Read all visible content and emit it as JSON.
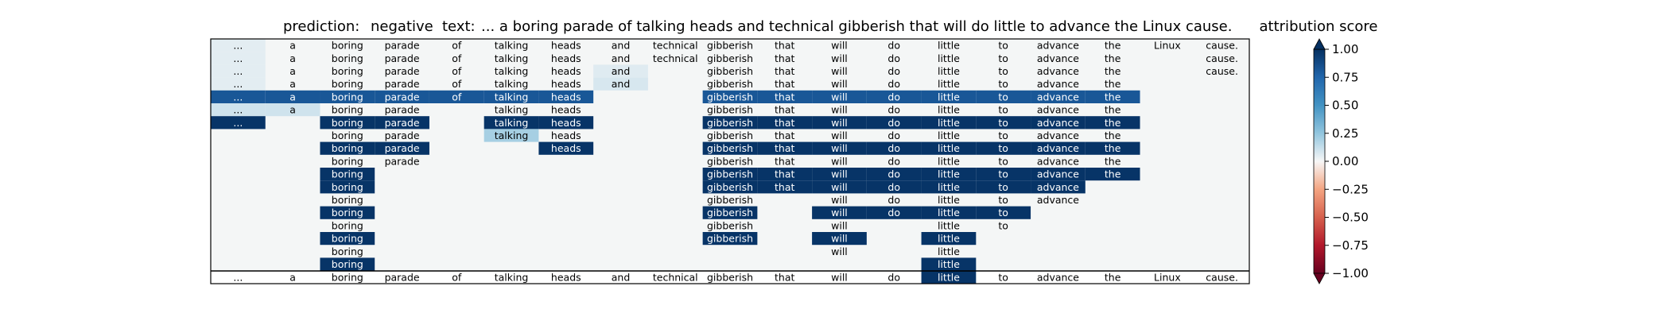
{
  "chart_data": {
    "type": "heatmap",
    "prediction_label": "prediction:",
    "prediction": "negative",
    "text_label": "text:",
    "text": "... a boring parade of talking heads and technical gibberish that will do little to advance the Linux cause.",
    "tokens": [
      "...",
      "a",
      "boring",
      "parade",
      "of",
      "talking",
      "heads",
      "and",
      "technical",
      "gibberish",
      "that",
      "will",
      "do",
      "little",
      "to",
      "advance",
      "the",
      "Linux",
      "cause."
    ],
    "rows": [
      {
        "present": [
          0,
          1,
          2,
          3,
          4,
          5,
          6,
          7,
          8,
          9,
          10,
          11,
          12,
          13,
          14,
          15,
          16,
          17,
          18
        ],
        "scores": {
          "0": 0.05,
          "1": 0.03,
          "2": 0.03,
          "3": 0.03,
          "4": 0.03,
          "5": 0.03,
          "6": 0.03,
          "7": 0.03,
          "8": 0.03,
          "9": 0.03,
          "10": 0.03,
          "11": 0.03,
          "12": 0.03,
          "13": 0.03,
          "14": 0.03,
          "15": 0.03,
          "16": 0.03,
          "17": 0.03,
          "18": 0.03
        }
      },
      {
        "present": [
          0,
          1,
          2,
          3,
          4,
          5,
          6,
          7,
          8,
          9,
          10,
          11,
          12,
          13,
          14,
          15,
          16,
          18
        ],
        "scores": {
          "0": 0.05,
          "1": 0.03,
          "2": 0.03,
          "3": 0.03,
          "4": 0.03,
          "5": 0.03,
          "6": 0.03,
          "7": 0.03,
          "8": 0.03,
          "9": 0.03,
          "10": 0.03,
          "11": 0.03,
          "12": 0.03,
          "13": 0.03,
          "14": 0.03,
          "15": 0.03,
          "16": 0.03,
          "18": 0.03
        }
      },
      {
        "present": [
          0,
          1,
          2,
          3,
          4,
          5,
          6,
          7,
          9,
          10,
          11,
          12,
          13,
          14,
          15,
          16,
          18
        ],
        "scores": {
          "0": 0.05,
          "1": 0.03,
          "2": 0.03,
          "3": 0.03,
          "4": 0.03,
          "5": 0.03,
          "6": 0.03,
          "7": 0.06,
          "9": 0.03,
          "10": 0.03,
          "11": 0.03,
          "12": 0.03,
          "13": 0.03,
          "14": 0.03,
          "15": 0.03,
          "16": 0.03,
          "18": 0.03
        }
      },
      {
        "present": [
          0,
          1,
          2,
          3,
          4,
          5,
          6,
          7,
          9,
          10,
          11,
          12,
          13,
          14,
          15,
          16
        ],
        "scores": {
          "0": 0.05,
          "1": 0.03,
          "2": 0.03,
          "3": 0.03,
          "4": 0.03,
          "5": 0.03,
          "6": 0.03,
          "7": 0.08,
          "9": 0.03,
          "10": 0.03,
          "11": 0.03,
          "12": 0.03,
          "13": 0.03,
          "14": 0.03,
          "15": 0.03,
          "16": 0.03
        }
      },
      {
        "present": [
          0,
          1,
          2,
          3,
          4,
          5,
          6,
          9,
          10,
          11,
          12,
          13,
          14,
          15,
          16
        ],
        "scores": {
          "0": 0.82,
          "1": 0.82,
          "2": 0.82,
          "3": 0.82,
          "4": 0.82,
          "5": 0.82,
          "6": 0.82,
          "9": 0.82,
          "10": 0.82,
          "11": 0.82,
          "12": 0.82,
          "13": 0.82,
          "14": 0.82,
          "15": 0.82,
          "16": 0.82
        }
      },
      {
        "present": [
          0,
          1,
          2,
          3,
          5,
          6,
          9,
          10,
          11,
          12,
          13,
          14,
          15,
          16
        ],
        "scores": {
          "0": 0.1,
          "1": 0.1,
          "2": 0.03,
          "3": 0.03,
          "5": 0.03,
          "6": 0.03,
          "9": 0.03,
          "10": 0.03,
          "11": 0.03,
          "12": 0.03,
          "13": 0.03,
          "14": 0.03,
          "15": 0.03,
          "16": 0.03
        }
      },
      {
        "present": [
          0,
          2,
          3,
          5,
          6,
          9,
          10,
          11,
          12,
          13,
          14,
          15,
          16
        ],
        "scores": {
          "0": 0.98,
          "2": 0.98,
          "3": 0.98,
          "5": 0.98,
          "6": 0.98,
          "9": 0.98,
          "10": 0.98,
          "11": 0.98,
          "12": 0.98,
          "13": 0.98,
          "14": 0.98,
          "15": 0.98,
          "16": 0.98
        }
      },
      {
        "present": [
          2,
          3,
          5,
          6,
          9,
          10,
          11,
          12,
          13,
          14,
          15,
          16
        ],
        "scores": {
          "2": 0.03,
          "3": 0.03,
          "5": 0.2,
          "6": 0.03,
          "9": 0.03,
          "10": 0.03,
          "11": 0.03,
          "12": 0.03,
          "13": 0.03,
          "14": 0.03,
          "15": 0.03,
          "16": 0.03
        }
      },
      {
        "present": [
          2,
          3,
          6,
          9,
          10,
          11,
          12,
          13,
          14,
          15,
          16
        ],
        "scores": {
          "2": 0.98,
          "3": 0.98,
          "6": 0.98,
          "9": 0.98,
          "10": 0.98,
          "11": 0.98,
          "12": 0.98,
          "13": 0.98,
          "14": 0.98,
          "15": 0.98,
          "16": 0.98
        }
      },
      {
        "present": [
          2,
          3,
          9,
          10,
          11,
          12,
          13,
          14,
          15,
          16
        ],
        "scores": {
          "2": 0.03,
          "3": 0.03,
          "9": 0.03,
          "10": 0.03,
          "11": 0.03,
          "12": 0.03,
          "13": 0.03,
          "14": 0.03,
          "15": 0.03,
          "16": 0.03
        }
      },
      {
        "present": [
          2,
          9,
          10,
          11,
          12,
          13,
          14,
          15,
          16
        ],
        "scores": {
          "2": 0.98,
          "9": 0.98,
          "10": 0.98,
          "11": 0.98,
          "12": 0.98,
          "13": 0.98,
          "14": 0.98,
          "15": 0.98,
          "16": 0.98
        }
      },
      {
        "present": [
          2,
          9,
          10,
          11,
          12,
          13,
          14,
          15
        ],
        "scores": {
          "2": 0.98,
          "9": 0.98,
          "10": 0.98,
          "11": 0.98,
          "12": 0.98,
          "13": 0.98,
          "14": 0.98,
          "15": 0.98
        }
      },
      {
        "present": [
          2,
          9,
          11,
          12,
          13,
          14,
          15
        ],
        "scores": {
          "2": 0.03,
          "9": 0.03,
          "11": 0.03,
          "12": 0.03,
          "13": 0.03,
          "14": 0.03,
          "15": 0.03
        }
      },
      {
        "present": [
          2,
          9,
          11,
          12,
          13,
          14
        ],
        "scores": {
          "2": 0.98,
          "9": 0.98,
          "11": 0.98,
          "12": 0.98,
          "13": 0.98,
          "14": 0.98
        }
      },
      {
        "present": [
          2,
          9,
          11,
          13,
          14
        ],
        "scores": {
          "2": 0.03,
          "9": 0.03,
          "11": 0.03,
          "13": 0.03,
          "14": 0.03
        }
      },
      {
        "present": [
          2,
          9,
          11,
          13
        ],
        "scores": {
          "2": 0.98,
          "9": 0.98,
          "11": 0.98,
          "13": 0.98
        }
      },
      {
        "present": [
          2,
          11,
          13
        ],
        "scores": {
          "2": 0.03,
          "11": 0.03,
          "13": 0.03
        }
      },
      {
        "present": [
          2,
          13
        ],
        "scores": {
          "2": 0.98,
          "13": 0.98
        }
      }
    ],
    "bottom_row": {
      "present": [
        0,
        1,
        2,
        3,
        4,
        5,
        6,
        7,
        8,
        9,
        10,
        11,
        12,
        13,
        14,
        15,
        16,
        17,
        18
      ],
      "scores": {
        "13": 0.98
      }
    },
    "colorbar": {
      "label": "attribution score",
      "vmin": -1.0,
      "vmax": 1.0,
      "ticks": [
        1.0,
        0.75,
        0.5,
        0.25,
        0.0,
        -0.25,
        -0.5,
        -0.75,
        -1.0
      ],
      "tick_labels": [
        "1.00",
        "0.75",
        "0.50",
        "0.25",
        "0.00",
        "−0.25",
        "−0.50",
        "−0.75",
        "−1.00"
      ],
      "colormap": "RdBu",
      "extend": "both"
    },
    "background_color": "#f4f6f6"
  }
}
